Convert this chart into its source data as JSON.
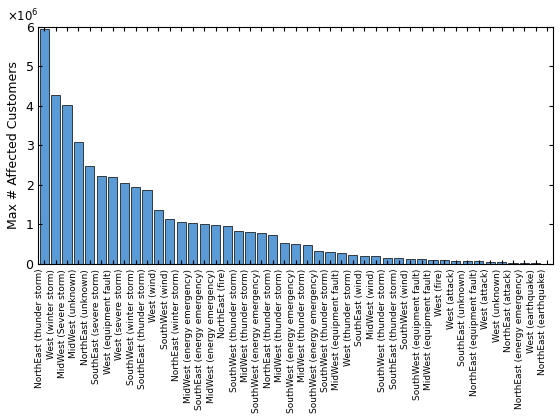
{
  "categories": [
    "NorthEast (thunder storm)",
    "West (winter storm)",
    "MidWest (Severe storm)",
    "MidWest (unknown)",
    "NorthEast (unknown)",
    "SouthEast (severe storm)",
    "West (equipment fault)",
    "West (severe storm)",
    "SouthWest (winter storm)",
    "SouthEast (thunder storm)",
    "West (wind)",
    "SouthWest (wind)",
    "NorthEast (winter storm)",
    "MidWest (energy emergency)",
    "SouthEast (energy emergency)",
    "MidWest (energy emergency)",
    "NorthEast (fire)",
    "SouthWest (thunder storm)",
    "MidWest (thunder storm)",
    "SouthWest (energy emergency)",
    "NorthEast (thunder storm)",
    "MidWest (thunder storm)",
    "SouthWest (energy emergency)",
    "MidWest (thunder storm)",
    "SouthWest (energy emergency)",
    "SouthWest (thunder storm)",
    "MidWest (equipment fault)",
    "West (thunder storm)",
    "SouthEast (wind)",
    "MidWest (wind)",
    "SouthWest (thunder storm)",
    "SouthEast (thunder storm)",
    "SouthWest (wind)",
    "SouthWest (equipment fault)",
    "MidWest (equipment fault)",
    "West (fire)",
    "West (attack)",
    "SouthEast (unknown)",
    "NorthEast (equipment fault)",
    "West (attack)",
    "West (unknown)",
    "NorthEast (attack)",
    "NorthEast (energy emergency)",
    "West (earthquake)",
    "NorthEast (earthquake)"
  ],
  "values": [
    5950000,
    4280000,
    4020000,
    3090000,
    2490000,
    2230000,
    2200000,
    2060000,
    1950000,
    1880000,
    1360000,
    1130000,
    1070000,
    1040000,
    1000000,
    980000,
    950000,
    830000,
    810000,
    780000,
    740000,
    540000,
    510000,
    480000,
    320000,
    300000,
    270000,
    230000,
    210000,
    190000,
    160000,
    140000,
    130000,
    120000,
    110000,
    100000,
    85000,
    75000,
    65000,
    55000,
    45000,
    35000,
    25000,
    15000,
    8000
  ],
  "bar_color": "#5b9bd5",
  "bar_edge_color": "#000000",
  "ylabel": "Max # Affected Customers",
  "ylim": [
    0,
    6000000
  ],
  "background_color": "#ffffff"
}
